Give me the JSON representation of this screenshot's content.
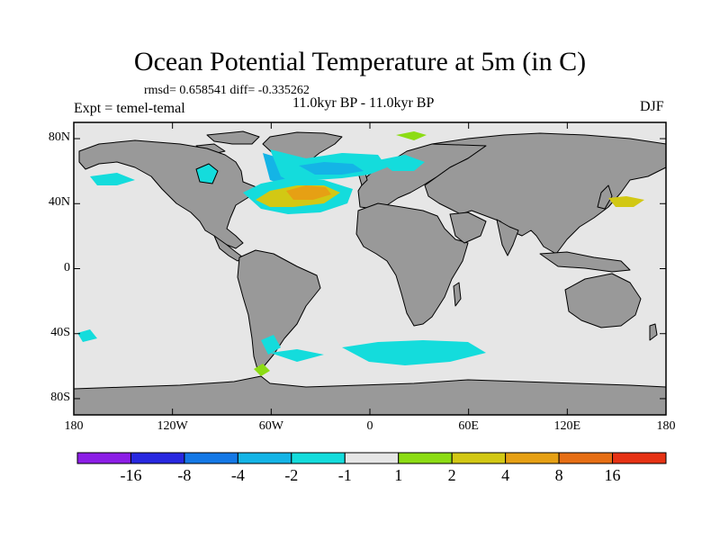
{
  "title": "Ocean Potential Temperature at 5m (in C)",
  "stats": "rmsd= 0.658541 diff= -0.335262",
  "experiment": "Expt = temel-temal",
  "period": "11.0kyr BP - 11.0kyr BP",
  "season": "DJF",
  "map": {
    "lat_range": [
      -90,
      90
    ],
    "lon_range": [
      -180,
      180
    ],
    "lat_labels": [
      {
        "value": 80,
        "text": "80N"
      },
      {
        "value": 40,
        "text": "40N"
      },
      {
        "value": 0,
        "text": "0"
      },
      {
        "value": -40,
        "text": "40S"
      },
      {
        "value": -80,
        "text": "80S"
      }
    ],
    "lon_labels": [
      {
        "value": -180,
        "text": "180"
      },
      {
        "value": -120,
        "text": "120W"
      },
      {
        "value": -60,
        "text": "60W"
      },
      {
        "value": 0,
        "text": "0"
      },
      {
        "value": 60,
        "text": "60E"
      },
      {
        "value": 120,
        "text": "120E"
      },
      {
        "value": 180,
        "text": "180"
      }
    ],
    "ocean_color": "#e6e6e6",
    "land_color": "#999999"
  },
  "colorbar": {
    "colors": [
      "#8c1ee6",
      "#2828e0",
      "#1478e6",
      "#14b4e6",
      "#14dcdc",
      "#e6e6e6",
      "#8cdc14",
      "#d2c814",
      "#e6a014",
      "#e66e14",
      "#e63214"
    ],
    "labels": [
      "-16",
      "-8",
      "-4",
      "-2",
      "-1",
      "1",
      "2",
      "4",
      "8",
      "16"
    ]
  }
}
